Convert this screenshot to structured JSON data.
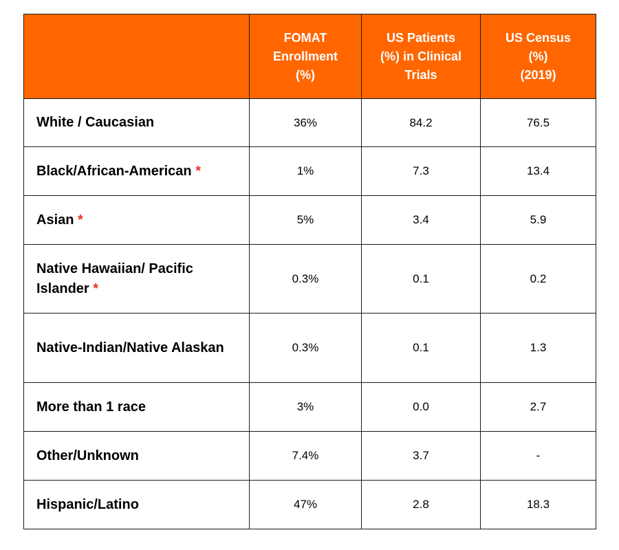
{
  "table": {
    "headers": [
      "",
      "FOMAT\nEnrollment\n(%)",
      "US Patients\n(%) in Clinical\nTrials",
      "US Census\n(%)\n(2019)"
    ],
    "rows": [
      {
        "label": "White / Caucasian",
        "asterisk": "",
        "fomat": "36%",
        "trials": "84.2",
        "census": "76.5"
      },
      {
        "label": "Black/African-American",
        "asterisk": "*",
        "fomat": "1%",
        "trials": "7.3",
        "census": "13.4"
      },
      {
        "label": "Asian",
        "asterisk": "*",
        "fomat": "5%",
        "trials": "3.4",
        "census": "5.9"
      },
      {
        "label": "Native Hawaiian/ Pacific Islander",
        "asterisk": "*",
        "fomat": "0.3%",
        "trials": "0.1",
        "census": "0.2"
      },
      {
        "label": "Native-Indian/Native Alaskan",
        "asterisk": "",
        "fomat": "0.3%",
        "trials": "0.1",
        "census": "1.3"
      },
      {
        "label": "More than 1 race",
        "asterisk": "",
        "fomat": "3%",
        "trials": "0.0",
        "census": "2.7"
      },
      {
        "label": "Other/Unknown",
        "asterisk": "",
        "fomat": "7.4%",
        "trials": "3.7",
        "census": "-"
      },
      {
        "label": "Hispanic/Latino",
        "asterisk": "",
        "fomat": "47%",
        "trials": "2.8",
        "census": "18.3"
      }
    ]
  },
  "colors": {
    "header_bg": "#ff6600",
    "header_text": "#ffffff",
    "asterisk": "#e8332b",
    "border": "#1a1a1a"
  }
}
